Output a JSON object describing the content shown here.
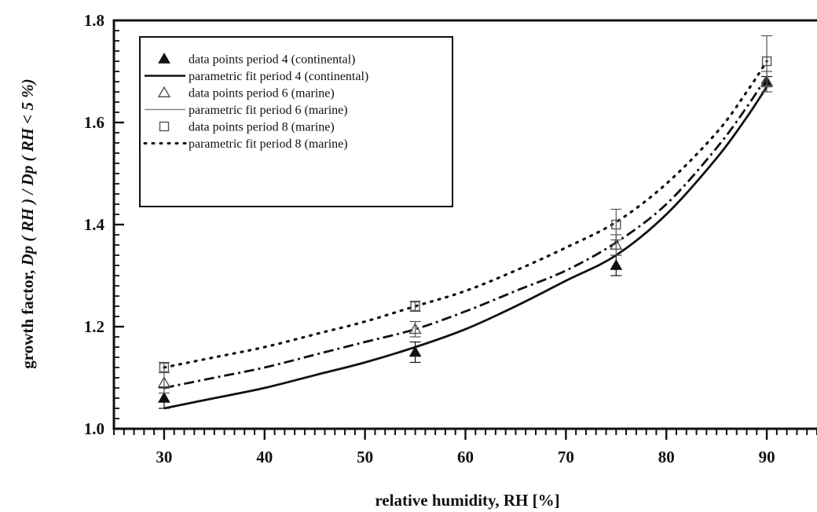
{
  "chart_data": {
    "type": "scatter",
    "xlabel": "relative humidity, RH [%]",
    "ylabel_parts": [
      "growth factor, ",
      "Dp ( RH ) / Dp ( RH < 5 %)"
    ],
    "xlim": [
      25,
      95
    ],
    "ylim": [
      1.0,
      1.8
    ],
    "x_ticks": [
      30,
      40,
      50,
      60,
      70,
      80,
      90
    ],
    "y_ticks": [
      1.0,
      1.2,
      1.4,
      1.6,
      1.8
    ],
    "x_minor_step": 1,
    "y_minor_step": 0.02,
    "grid": false,
    "legend_position": "top-left",
    "series": [
      {
        "name": "data points period 4 (continental)",
        "kind": "points",
        "marker": "filled-triangle",
        "color": "#111111",
        "x": [
          30,
          55,
          75,
          90
        ],
        "y": [
          1.06,
          1.15,
          1.32,
          1.68
        ],
        "err": [
          0.02,
          0.02,
          0.02,
          0.01
        ]
      },
      {
        "name": "parametric fit period 4 (continental)",
        "kind": "fit",
        "line_style": "solid",
        "color": "#111111",
        "x": [
          30,
          35,
          40,
          45,
          50,
          55,
          60,
          65,
          70,
          75,
          80,
          85,
          88,
          90
        ],
        "y": [
          1.04,
          1.06,
          1.08,
          1.105,
          1.13,
          1.16,
          1.195,
          1.24,
          1.29,
          1.34,
          1.42,
          1.53,
          1.61,
          1.67
        ]
      },
      {
        "name": "data points period 6 (marine)",
        "kind": "points",
        "marker": "open-triangle",
        "color": "#555555",
        "x": [
          30,
          55,
          75,
          90
        ],
        "y": [
          1.09,
          1.195,
          1.36,
          1.68
        ],
        "err": [
          0.02,
          0.015,
          0.02,
          0.02
        ]
      },
      {
        "name": "parametric fit period 6 (marine)",
        "kind": "fit",
        "line_style": "dash-dot",
        "color": "#111111",
        "x": [
          30,
          35,
          40,
          45,
          50,
          55,
          60,
          65,
          70,
          75,
          80,
          85,
          88,
          90
        ],
        "y": [
          1.08,
          1.1,
          1.12,
          1.145,
          1.17,
          1.195,
          1.23,
          1.27,
          1.31,
          1.365,
          1.44,
          1.55,
          1.63,
          1.69
        ]
      },
      {
        "name": "data points period 8 (marine)",
        "kind": "points",
        "marker": "open-square",
        "color": "#555555",
        "x": [
          30,
          55,
          75,
          90
        ],
        "y": [
          1.12,
          1.24,
          1.4,
          1.72
        ],
        "err": [
          0.01,
          0.01,
          0.03,
          0.05
        ]
      },
      {
        "name": "parametric fit period 8 (marine)",
        "kind": "fit",
        "line_style": "dotted",
        "color": "#111111",
        "x": [
          30,
          35,
          40,
          45,
          50,
          55,
          60,
          65,
          70,
          75,
          80,
          85,
          88,
          90
        ],
        "y": [
          1.12,
          1.14,
          1.16,
          1.185,
          1.21,
          1.24,
          1.27,
          1.31,
          1.355,
          1.405,
          1.48,
          1.58,
          1.66,
          1.72
        ]
      }
    ]
  }
}
